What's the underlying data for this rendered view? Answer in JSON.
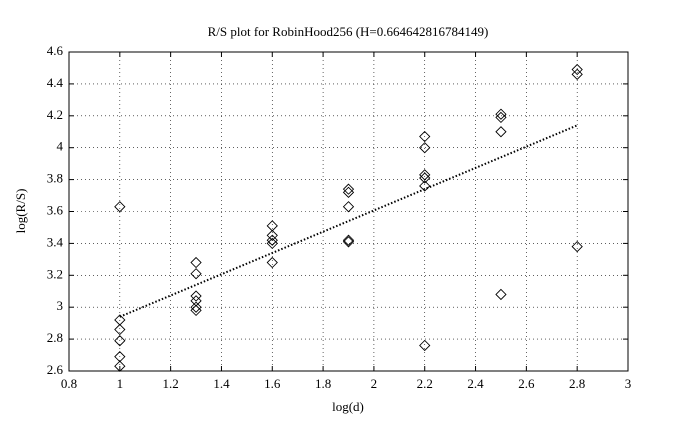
{
  "chart_data": {
    "type": "scatter",
    "title": "R/S plot for RobinHood256 (H=0.664642816784149)",
    "x_label": "log(d)",
    "y_label": "log(R/S)",
    "x": [
      1,
      1,
      1,
      1,
      1,
      1,
      1.3,
      1.3,
      1.3,
      1.3,
      1.3,
      1.3,
      1.6,
      1.6,
      1.6,
      1.6,
      1.6,
      1.9,
      1.9,
      1.9,
      1.9,
      1.9,
      2.2,
      2.2,
      2.2,
      2.2,
      2.2,
      2.2,
      2.5,
      2.5,
      2.5,
      2.5,
      2.8,
      2.8,
      2.8
    ],
    "y": [
      3.63,
      2.92,
      2.86,
      2.79,
      2.69,
      2.63,
      3.28,
      3.21,
      3.07,
      3.04,
      3.0,
      2.98,
      3.51,
      3.45,
      3.42,
      3.4,
      3.28,
      3.74,
      3.72,
      3.63,
      3.42,
      3.41,
      4.07,
      4.0,
      3.83,
      3.81,
      3.76,
      2.76,
      4.21,
      4.19,
      4.1,
      3.08,
      4.49,
      4.46,
      3.38
    ],
    "color": "#000000",
    "fit": {
      "x": [
        1,
        2.8
      ],
      "y": [
        2.94,
        4.14
      ]
    },
    "xlim": [
      0.8,
      3
    ],
    "xticks": [
      0.8,
      1,
      1.2,
      1.4,
      1.6,
      1.8,
      2,
      2.2,
      2.4,
      2.6,
      2.8,
      3
    ],
    "ylim": [
      2.6,
      4.6
    ],
    "yticks": [
      2.6,
      2.8,
      3,
      3.2,
      3.4,
      3.6,
      3.8,
      4,
      4.2,
      4.4,
      4.6
    ],
    "grid": true
  }
}
